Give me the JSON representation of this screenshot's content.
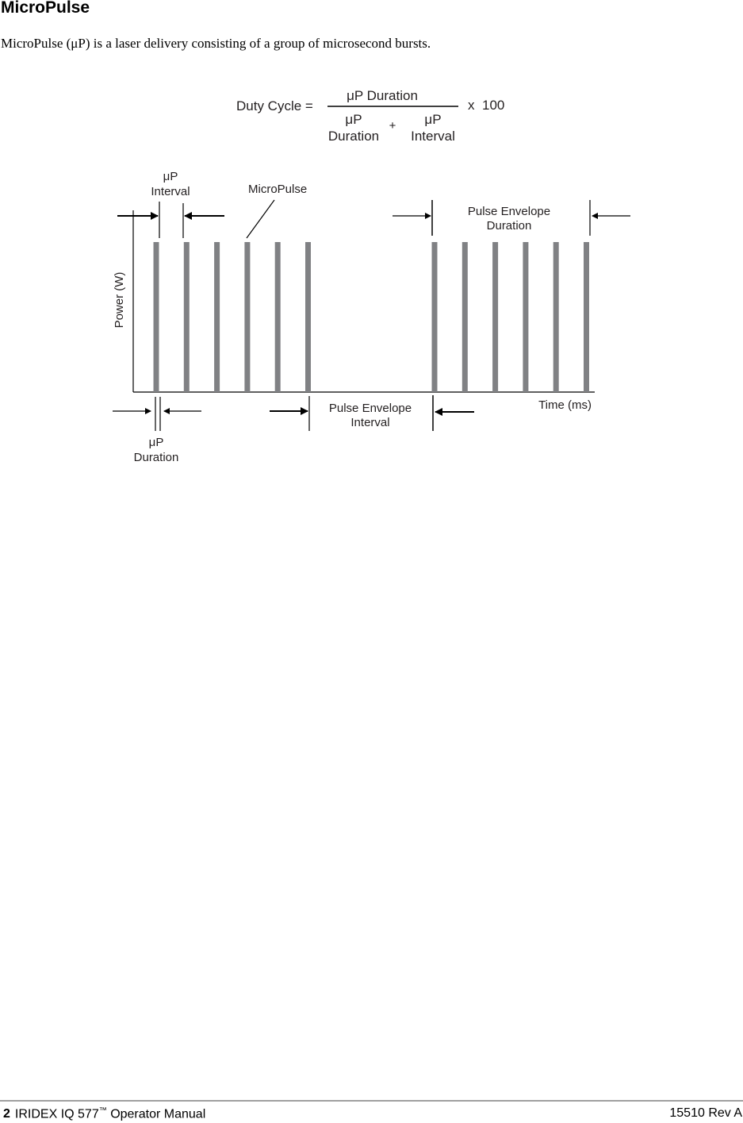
{
  "heading": "MicroPulse",
  "intro": "MicroPulse (μP) is a laser delivery consisting of a group of microsecond bursts.",
  "formula": {
    "lhs": "Duty Cycle =",
    "numerator": "μP Duration",
    "denom_left_1": "μP",
    "denom_left_2": "Duration",
    "plus": "+",
    "denom_right_1": "μP",
    "denom_right_2": "Interval",
    "times": "x",
    "factor": "100"
  },
  "diagram": {
    "up_interval_1": "μP",
    "up_interval_2": "Interval",
    "micropulse": "MicroPulse",
    "ped_1": "Pulse Envelope",
    "ped_2": "Duration",
    "pei_1": "Pulse Envelope",
    "pei_2": "Interval",
    "up_duration_1": "μP",
    "up_duration_2": "Duration",
    "y_axis": "Power (W)",
    "x_axis": "Time (ms)",
    "pulse_color": "#808184",
    "pulse_groups": [
      6,
      6
    ]
  },
  "footer": {
    "page": "2",
    "manual": "IRIDEX IQ 577",
    "tm": "™",
    "manual_suffix": "Operator Manual",
    "rev": "15510 Rev A"
  }
}
